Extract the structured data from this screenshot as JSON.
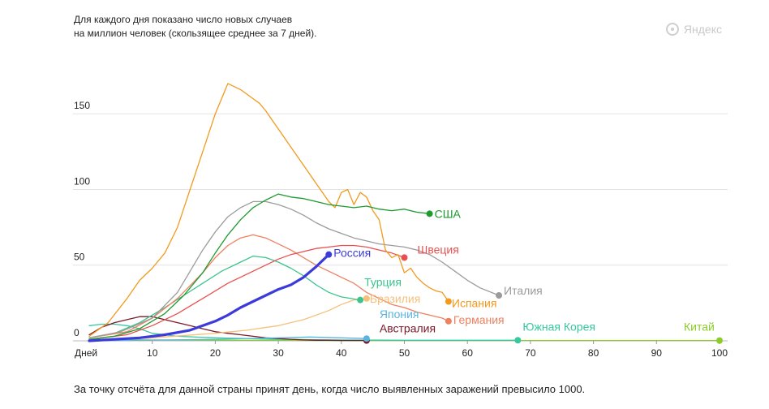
{
  "subtitle_line1": "Для каждого дня показано число новых случаев",
  "subtitle_line2": "на миллион человек (скользящее среднее за 7 дней).",
  "brand": "Яндекс",
  "footnote": "За точку отсчёта для данной страны принят день, когда число выявленных заражений превысило 1000.",
  "chart_data": {
    "type": "line",
    "title": "",
    "subtitle": "Для каждого дня показано число новых случаев на миллион человек (скользящее среднее за 7 дней).",
    "xlabel": "Дней",
    "ylabel": "",
    "xlim": [
      0,
      100
    ],
    "ylim": [
      0,
      175
    ],
    "x_ticks": [
      10,
      20,
      30,
      40,
      50,
      60,
      70,
      80,
      90,
      100
    ],
    "x_tick_labels": [
      "Дней",
      "10",
      "20",
      "30",
      "40",
      "50",
      "60",
      "70",
      "80",
      "90",
      "100"
    ],
    "y_ticks": [
      0,
      50,
      100,
      150
    ],
    "grid": "horizontal",
    "legend": "end-of-line labels",
    "series": [
      {
        "name": "США",
        "color": "#1e9a2f",
        "x": [
          0,
          4,
          8,
          12,
          15,
          18,
          20,
          22,
          24,
          26,
          28,
          30,
          32,
          34,
          36,
          38,
          40,
          42,
          44,
          46,
          48,
          50,
          52,
          54
        ],
        "y": [
          1,
          3,
          8,
          18,
          30,
          45,
          58,
          70,
          80,
          88,
          93,
          97,
          95,
          94,
          92,
          90,
          89,
          88,
          89,
          87,
          86,
          87,
          85,
          84
        ]
      },
      {
        "name": "Швеция",
        "color": "#e85050",
        "x": [
          0,
          6,
          10,
          14,
          18,
          22,
          26,
          28,
          30,
          32,
          34,
          36,
          38,
          40,
          42,
          44,
          46,
          48,
          50
        ],
        "y": [
          1,
          4,
          10,
          18,
          28,
          38,
          46,
          50,
          54,
          57,
          59,
          61,
          62,
          63,
          63,
          62,
          60,
          58,
          55
        ]
      },
      {
        "name": "Россия",
        "color": "#3b3bdb",
        "x": [
          0,
          4,
          8,
          12,
          16,
          18,
          20,
          22,
          24,
          26,
          28,
          30,
          32,
          34,
          36,
          38
        ],
        "y": [
          0,
          1,
          2,
          4,
          7,
          10,
          13,
          17,
          22,
          26,
          30,
          34,
          37,
          42,
          49,
          57
        ]
      },
      {
        "name": "Турция",
        "color": "#3cc48c",
        "x": [
          0,
          4,
          8,
          12,
          15,
          18,
          21,
          24,
          26,
          28,
          30,
          32,
          34,
          36,
          38,
          40,
          43
        ],
        "y": [
          2,
          5,
          12,
          22,
          30,
          38,
          46,
          52,
          56,
          55,
          52,
          48,
          43,
          37,
          32,
          29,
          27
        ]
      },
      {
        "name": "Бразилия",
        "color": "#f5c07a",
        "x": [
          0,
          10,
          20,
          25,
          30,
          34,
          38,
          40,
          42,
          44
        ],
        "y": [
          0,
          2,
          5,
          7,
          10,
          14,
          20,
          24,
          27,
          28
        ]
      },
      {
        "name": "Испания",
        "color": "#f29a1e",
        "x": [
          0,
          3,
          6,
          8,
          10,
          12,
          14,
          16,
          18,
          20,
          21,
          22,
          23,
          24,
          25,
          26,
          27,
          28,
          29,
          30,
          32,
          34,
          36,
          38,
          39,
          40,
          41,
          42,
          43,
          44,
          45,
          46,
          47,
          48,
          49,
          50,
          51,
          52,
          53,
          54,
          55,
          56,
          57
        ],
        "y": [
          3,
          12,
          28,
          40,
          48,
          58,
          75,
          100,
          125,
          150,
          160,
          170,
          168,
          166,
          163,
          160,
          157,
          152,
          146,
          140,
          128,
          116,
          104,
          92,
          88,
          98,
          100,
          90,
          98,
          95,
          86,
          80,
          60,
          55,
          57,
          45,
          48,
          42,
          38,
          35,
          33,
          32,
          26
        ]
      },
      {
        "name": "Италия",
        "color": "#9b9b9b",
        "x": [
          0,
          5,
          10,
          14,
          18,
          20,
          22,
          24,
          26,
          28,
          30,
          32,
          34,
          36,
          38,
          40,
          42,
          44,
          46,
          48,
          50,
          52,
          54,
          56,
          58,
          60,
          62,
          65
        ],
        "y": [
          2,
          6,
          15,
          32,
          60,
          72,
          82,
          88,
          92,
          92,
          90,
          87,
          83,
          78,
          74,
          71,
          68,
          66,
          64,
          63,
          62,
          60,
          57,
          52,
          46,
          40,
          35,
          30
        ]
      },
      {
        "name": "Германия",
        "color": "#ef8060",
        "x": [
          0,
          6,
          10,
          14,
          18,
          20,
          22,
          24,
          26,
          28,
          30,
          32,
          34,
          36,
          38,
          40,
          42,
          44,
          46,
          48,
          50,
          52,
          54,
          56,
          57
        ],
        "y": [
          2,
          6,
          15,
          28,
          45,
          55,
          63,
          68,
          70,
          68,
          64,
          60,
          55,
          50,
          46,
          42,
          38,
          32,
          28,
          24,
          22,
          19,
          17,
          15,
          13
        ]
      },
      {
        "name": "Япония",
        "color": "#5ab4e0",
        "x": [
          0,
          10,
          20,
          30,
          35,
          40,
          44
        ],
        "y": [
          0,
          0.5,
          1,
          2,
          2.5,
          2,
          1.5
        ]
      },
      {
        "name": "Австралия",
        "color": "#7a1a28",
        "x": [
          0,
          2,
          4,
          6,
          8,
          10,
          12,
          14,
          16,
          18,
          20,
          22,
          24,
          26,
          28,
          30,
          32,
          34,
          36,
          38,
          40,
          42,
          44
        ],
        "y": [
          4,
          9,
          12,
          14,
          16,
          16,
          14,
          12,
          10,
          8,
          6,
          5,
          4,
          3,
          2,
          1.5,
          1,
          0.6,
          0.4,
          0.3,
          0.2,
          0.2,
          0.2
        ]
      },
      {
        "name": "Южная Корея",
        "color": "#38c8a0",
        "x": [
          0,
          2,
          4,
          6,
          8,
          10,
          14,
          20,
          30,
          40,
          50,
          60,
          68
        ],
        "y": [
          10,
          11,
          11,
          10,
          8,
          5,
          3,
          2,
          1,
          0.6,
          0.4,
          0.4,
          0.4
        ]
      },
      {
        "name": "Китай",
        "color": "#8ccc28",
        "x": [
          0,
          10,
          20,
          30,
          40,
          50,
          60,
          70,
          80,
          90,
          100
        ],
        "y": [
          1,
          0.6,
          0.4,
          0.3,
          0.2,
          0.2,
          0.2,
          0.2,
          0.2,
          0.2,
          0.2
        ]
      }
    ],
    "line_labels": [
      {
        "name": "США",
        "text": "США"
      },
      {
        "name": "Швеция",
        "text": "Швеция"
      },
      {
        "name": "Россия",
        "text": "Россия"
      },
      {
        "name": "Турция",
        "text": "Турция"
      },
      {
        "name": "Бразилия",
        "text": "Бразилия"
      },
      {
        "name": "Испания",
        "text": "Испания"
      },
      {
        "name": "Италия",
        "text": "Италия"
      },
      {
        "name": "Германия",
        "text": "Германия"
      },
      {
        "name": "Япония",
        "text": "Япония"
      },
      {
        "name": "Австралия",
        "text": "Австралия"
      },
      {
        "name": "Южная Корея",
        "text": "Южная Корея"
      },
      {
        "name": "Китай",
        "text": "Китай"
      }
    ]
  }
}
